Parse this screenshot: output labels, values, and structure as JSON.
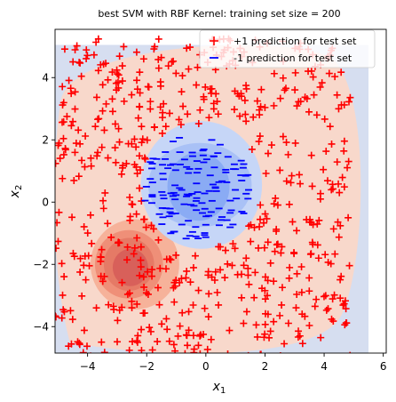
{
  "chart_data": {
    "type": "scatter",
    "title": "best SVM with RBF Kernel: training set size = 200",
    "xlabel": "x1",
    "ylabel": "x2",
    "xlim": [
      -5.1,
      6.1
    ],
    "ylim": [
      -4.85,
      5.55
    ],
    "xticks": [
      -4,
      -2,
      0,
      2,
      4,
      6
    ],
    "yticks": [
      -4,
      -2,
      0,
      2,
      4
    ],
    "xtick_labels": [
      "−4",
      "−2",
      "0",
      "2",
      "4",
      "6"
    ],
    "ytick_labels": [
      "−4",
      "−2",
      "0",
      "2",
      "4"
    ],
    "grid": false,
    "legend_position": "top-right",
    "background_region": {
      "x": [
        -5.1,
        5.5
      ],
      "y": [
        -4.85,
        5.05
      ],
      "color": "#d6def0"
    },
    "decision_contours": {
      "negative_levels": [
        {
          "center": [
            -0.15,
            0.55
          ],
          "radius": [
            2.05,
            2.05
          ],
          "color": "#c6d6f7"
        },
        {
          "center": [
            -0.2,
            0.55
          ],
          "radius": [
            1.75,
            1.35
          ],
          "color": "#a9c1f6"
        },
        {
          "center": [
            -0.25,
            0.5
          ],
          "radius": [
            1.05,
            1.1
          ],
          "color": "#8aabf4"
        }
      ],
      "positive_levels": [
        {
          "center": [
            -2.4,
            -2.0
          ],
          "radius": [
            1.5,
            1.45
          ],
          "color": "#f6b29a"
        },
        {
          "center": [
            -2.6,
            -2.0
          ],
          "radius": [
            1.15,
            1.1
          ],
          "color": "#ef8f78"
        },
        {
          "center": [
            -2.6,
            -2.0
          ],
          "radius": [
            0.85,
            0.85
          ],
          "color": "#e57a66"
        },
        {
          "center": [
            -2.55,
            -2.1
          ],
          "radius": [
            0.6,
            0.6
          ],
          "color": "#d8605a"
        }
      ],
      "outer_positive_color": "#f8d8cb"
    },
    "series": [
      {
        "name": "+1 prediction for test set",
        "marker": "+",
        "color": "#ff0000",
        "points_description": "uniform over roughly [-5,5]x[-5,5] excluding a disc of radius ~2 centered near (-0.2,0.5)",
        "count": 600
      },
      {
        "name": "-1 prediction for test set",
        "marker": "_",
        "color": "#0000ff",
        "points_description": "inside ellipse centered (-0.3,0.5), radii ~1.85x1.7",
        "count": 140
      }
    ]
  }
}
